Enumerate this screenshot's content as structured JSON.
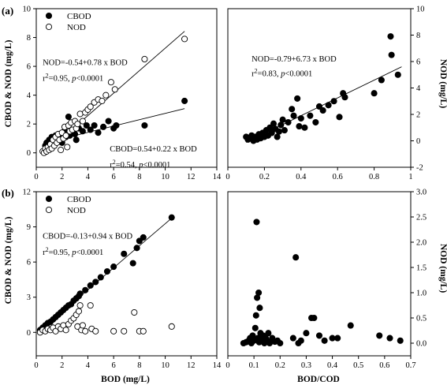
{
  "figure": {
    "panel_a": "(a)",
    "panel_b": "(b)",
    "xlabel_left": "BOD (mg/L)",
    "xlabel_right": "BOD/COD",
    "ylabel_left": "CBOD & NOD (mg/L)",
    "ylabel_right": "NOD (mg/L)"
  },
  "colors": {
    "marker": "#000000",
    "open_fill": "#ffffff",
    "axes": "#000000"
  },
  "chart_data": [
    {
      "id": "a-left",
      "type": "scatter",
      "xlim": [
        0,
        14
      ],
      "ylim": [
        -1,
        10
      ],
      "xticks": [
        0,
        2,
        4,
        6,
        8,
        10,
        12,
        14
      ],
      "yticks": [
        0,
        2,
        4,
        6,
        8,
        10
      ],
      "xlabel": "",
      "ylabel": "CBOD & NOD (mg/L)",
      "legend": [
        "CBOD",
        "NOD"
      ],
      "legend_position": "top-left",
      "annotations": [
        {
          "text": "NOD=-0.54+0.78 x BOD",
          "at": [
            0.5,
            6.1
          ]
        },
        {
          "text": "r²=0.95, p<0.0001",
          "at": [
            0.5,
            5.0
          ]
        },
        {
          "text": "CBOD=0.54+0.22 x BOD",
          "at": [
            5.7,
            0.1
          ]
        },
        {
          "text": "r²=0.54, p<0.0001",
          "at": [
            5.7,
            -1.0
          ]
        }
      ],
      "fit_lines": [
        {
          "series": "NOD",
          "intercept": -0.54,
          "slope": 0.78,
          "x_range": [
            1.5,
            11.5
          ]
        },
        {
          "series": "CBOD",
          "intercept": 0.54,
          "slope": 0.22,
          "x_range": [
            0.6,
            11.5
          ]
        }
      ],
      "series": [
        {
          "name": "CBOD",
          "marker": "filled",
          "points": [
            [
              0.7,
              0.5
            ],
            [
              0.8,
              0.7
            ],
            [
              0.9,
              0.4
            ],
            [
              1.0,
              0.9
            ],
            [
              1.1,
              0.6
            ],
            [
              1.2,
              1.1
            ],
            [
              1.3,
              0.8
            ],
            [
              1.4,
              0.5
            ],
            [
              1.5,
              1.2
            ],
            [
              1.6,
              0.9
            ],
            [
              1.8,
              1.3
            ],
            [
              1.9,
              1.0
            ],
            [
              2.0,
              0.7
            ],
            [
              2.2,
              1.5
            ],
            [
              2.3,
              1.1
            ],
            [
              2.5,
              2.5
            ],
            [
              2.6,
              1.2
            ],
            [
              2.8,
              1.6
            ],
            [
              3.0,
              1.3
            ],
            [
              3.1,
              0.9
            ],
            [
              3.3,
              1.7
            ],
            [
              3.6,
              1.5
            ],
            [
              3.9,
              1.9
            ],
            [
              4.2,
              1.6
            ],
            [
              4.5,
              1.9
            ],
            [
              4.8,
              1.4
            ],
            [
              5.2,
              1.8
            ],
            [
              5.6,
              2.2
            ],
            [
              6.0,
              1.7
            ],
            [
              6.2,
              1.9
            ],
            [
              8.4,
              1.9
            ],
            [
              11.5,
              3.6
            ]
          ]
        },
        {
          "name": "NOD",
          "marker": "open",
          "points": [
            [
              0.5,
              0.1
            ],
            [
              0.6,
              0.0
            ],
            [
              0.7,
              0.3
            ],
            [
              0.8,
              0.1
            ],
            [
              0.9,
              0.4
            ],
            [
              1.0,
              0.2
            ],
            [
              1.1,
              0.6
            ],
            [
              1.2,
              0.3
            ],
            [
              1.3,
              0.9
            ],
            [
              1.4,
              0.5
            ],
            [
              1.5,
              1.1
            ],
            [
              1.6,
              0.7
            ],
            [
              1.7,
              1.3
            ],
            [
              1.8,
              0.9
            ],
            [
              1.9,
              0.2
            ],
            [
              2.0,
              1.4
            ],
            [
              2.1,
              1.0
            ],
            [
              2.2,
              1.8
            ],
            [
              2.3,
              1.2
            ],
            [
              2.4,
              0.4
            ],
            [
              2.5,
              1.9
            ],
            [
              2.6,
              1.5
            ],
            [
              2.7,
              2.1
            ],
            [
              2.8,
              1.6
            ],
            [
              3.0,
              2.2
            ],
            [
              3.1,
              1.7
            ],
            [
              3.2,
              2.0
            ],
            [
              3.4,
              2.7
            ],
            [
              3.6,
              2.2
            ],
            [
              3.8,
              2.8
            ],
            [
              4.0,
              3.0
            ],
            [
              4.2,
              3.2
            ],
            [
              4.5,
              3.5
            ],
            [
              4.8,
              3.7
            ],
            [
              5.1,
              3.6
            ],
            [
              5.4,
              4.0
            ],
            [
              5.8,
              4.9
            ],
            [
              6.1,
              4.4
            ],
            [
              8.4,
              6.5
            ],
            [
              11.5,
              7.9
            ]
          ]
        }
      ]
    },
    {
      "id": "a-right",
      "type": "scatter",
      "xlim": [
        0,
        1.0
      ],
      "ylim": [
        -2,
        10
      ],
      "xticks": [
        0,
        0.2,
        0.4,
        0.6,
        0.8,
        1.0
      ],
      "yticks": [
        -2,
        0,
        2,
        4,
        6,
        8,
        10
      ],
      "xlabel": "",
      "ylabel": "NOD (mg/L)",
      "annotations": [
        {
          "text": "NOD=-0.79+6.73 x BOD",
          "at": [
            0.13,
            6.0
          ]
        },
        {
          "text": "r²=0.83, p<0.0001",
          "at": [
            0.13,
            4.9
          ]
        }
      ],
      "fit_lines": [
        {
          "series": "NOD",
          "intercept": -0.79,
          "slope": 6.73,
          "x_range": [
            0.1,
            0.95
          ]
        }
      ],
      "series": [
        {
          "name": "NOD",
          "marker": "filled",
          "points": [
            [
              0.1,
              0.3
            ],
            [
              0.11,
              0.1
            ],
            [
              0.12,
              0.2
            ],
            [
              0.13,
              0.4
            ],
            [
              0.14,
              0.0
            ],
            [
              0.15,
              0.3
            ],
            [
              0.16,
              0.1
            ],
            [
              0.17,
              0.5
            ],
            [
              0.18,
              0.2
            ],
            [
              0.19,
              0.6
            ],
            [
              0.2,
              0.3
            ],
            [
              0.21,
              0.8
            ],
            [
              0.22,
              0.4
            ],
            [
              0.23,
              1.0
            ],
            [
              0.24,
              0.6
            ],
            [
              0.25,
              1.3
            ],
            [
              0.26,
              0.9
            ],
            [
              0.27,
              0.3
            ],
            [
              0.28,
              0.7
            ],
            [
              0.29,
              1.2
            ],
            [
              0.3,
              1.6
            ],
            [
              0.31,
              0.8
            ],
            [
              0.33,
              1.4
            ],
            [
              0.35,
              2.4
            ],
            [
              0.36,
              1.9
            ],
            [
              0.38,
              3.2
            ],
            [
              0.39,
              1.1
            ],
            [
              0.4,
              1.7
            ],
            [
              0.42,
              1.0
            ],
            [
              0.45,
              1.9
            ],
            [
              0.48,
              1.4
            ],
            [
              0.5,
              2.6
            ],
            [
              0.52,
              2.3
            ],
            [
              0.55,
              2.7
            ],
            [
              0.58,
              3.0
            ],
            [
              0.61,
              1.8
            ],
            [
              0.63,
              3.6
            ],
            [
              0.64,
              3.3
            ],
            [
              0.8,
              3.6
            ],
            [
              0.84,
              4.6
            ],
            [
              0.89,
              7.9
            ],
            [
              0.895,
              6.5
            ],
            [
              0.93,
              5.0
            ]
          ]
        }
      ]
    },
    {
      "id": "b-left",
      "type": "scatter",
      "xlim": [
        0,
        14
      ],
      "ylim": [
        -2,
        12
      ],
      "xticks": [
        0,
        2,
        4,
        6,
        8,
        10,
        12,
        14
      ],
      "yticks": [
        0,
        3,
        6,
        9,
        12
      ],
      "xlabel": "BOD (mg/L)",
      "ylabel": "CBOD & NOD (mg/L)",
      "legend": [
        "CBOD",
        "NOD"
      ],
      "legend_position": "top-left",
      "annotations": [
        {
          "text": "CBOD=-0.13+0.94 x BOD",
          "at": [
            0.5,
            8.0
          ]
        },
        {
          "text": "r²=0.95, p<0.0001",
          "at": [
            0.5,
            6.6
          ]
        }
      ],
      "fit_lines": [
        {
          "series": "CBOD",
          "intercept": -0.13,
          "slope": 0.94,
          "x_range": [
            0.4,
            10.5
          ]
        }
      ],
      "series": [
        {
          "name": "CBOD",
          "marker": "filled",
          "points": [
            [
              0.3,
              0.2
            ],
            [
              0.5,
              0.4
            ],
            [
              0.7,
              0.6
            ],
            [
              0.9,
              0.8
            ],
            [
              1.1,
              0.9
            ],
            [
              1.3,
              1.1
            ],
            [
              1.5,
              1.3
            ],
            [
              1.7,
              1.5
            ],
            [
              1.9,
              1.7
            ],
            [
              2.1,
              1.9
            ],
            [
              2.3,
              2.1
            ],
            [
              2.5,
              2.3
            ],
            [
              2.7,
              2.4
            ],
            [
              2.9,
              2.7
            ],
            [
              3.1,
              2.9
            ],
            [
              3.3,
              3.1
            ],
            [
              3.4,
              3.3
            ],
            [
              3.8,
              3.6
            ],
            [
              4.2,
              4.0
            ],
            [
              4.6,
              4.3
            ],
            [
              5.0,
              4.7
            ],
            [
              5.5,
              5.2
            ],
            [
              6.0,
              5.6
            ],
            [
              6.8,
              6.7
            ],
            [
              7.5,
              5.9
            ],
            [
              7.8,
              7.2
            ],
            [
              8.0,
              7.8
            ],
            [
              8.3,
              8.1
            ],
            [
              10.5,
              9.8
            ]
          ]
        },
        {
          "name": "NOD",
          "marker": "open",
          "points": [
            [
              0.3,
              0.0
            ],
            [
              0.5,
              0.2
            ],
            [
              0.7,
              0.1
            ],
            [
              0.9,
              0.3
            ],
            [
              1.1,
              0.2
            ],
            [
              1.3,
              0.4
            ],
            [
              1.5,
              0.1
            ],
            [
              1.7,
              0.5
            ],
            [
              1.9,
              0.3
            ],
            [
              2.1,
              0.6
            ],
            [
              2.3,
              0.2
            ],
            [
              2.5,
              0.7
            ],
            [
              2.7,
              1.0
            ],
            [
              2.9,
              1.2
            ],
            [
              3.1,
              1.5
            ],
            [
              3.2,
              0.5
            ],
            [
              3.3,
              1.8
            ],
            [
              3.4,
              2.3
            ],
            [
              3.5,
              0.2
            ],
            [
              3.6,
              0.6
            ],
            [
              3.8,
              0.1
            ],
            [
              4.2,
              2.3
            ],
            [
              4.3,
              0.3
            ],
            [
              4.6,
              0.1
            ],
            [
              6.0,
              0.1
            ],
            [
              6.8,
              0.1
            ],
            [
              7.6,
              1.7
            ],
            [
              8.0,
              0.1
            ],
            [
              8.3,
              0.1
            ],
            [
              10.5,
              0.5
            ]
          ]
        }
      ]
    },
    {
      "id": "b-right",
      "type": "scatter",
      "xlim": [
        0,
        0.7
      ],
      "ylim": [
        -0.25,
        3.0
      ],
      "xticks": [
        0,
        0.1,
        0.2,
        0.3,
        0.4,
        0.5,
        0.6,
        0.7
      ],
      "yticks": [
        0,
        0.5,
        1.0,
        1.5,
        2.0,
        2.5,
        3.0
      ],
      "xlabel": "BOD/COD",
      "ylabel": "NOD (mg/L)",
      "series": [
        {
          "name": "NOD",
          "marker": "filled",
          "points": [
            [
              0.06,
              0.0
            ],
            [
              0.07,
              0.02
            ],
            [
              0.08,
              0.05
            ],
            [
              0.085,
              0.1
            ],
            [
              0.09,
              0.0
            ],
            [
              0.095,
              0.15
            ],
            [
              0.1,
              0.05
            ],
            [
              0.105,
              0.3
            ],
            [
              0.108,
              0.55
            ],
            [
              0.11,
              2.4
            ],
            [
              0.112,
              0.9
            ],
            [
              0.115,
              0.1
            ],
            [
              0.118,
              1.0
            ],
            [
              0.12,
              0.02
            ],
            [
              0.122,
              0.7
            ],
            [
              0.125,
              0.2
            ],
            [
              0.13,
              0.05
            ],
            [
              0.135,
              0.15
            ],
            [
              0.14,
              0.0
            ],
            [
              0.145,
              0.1
            ],
            [
              0.15,
              0.05
            ],
            [
              0.155,
              0.2
            ],
            [
              0.16,
              0.0
            ],
            [
              0.17,
              0.1
            ],
            [
              0.18,
              0.03
            ],
            [
              0.19,
              0.05
            ],
            [
              0.2,
              0.0
            ],
            [
              0.25,
              0.1
            ],
            [
              0.26,
              1.7
            ],
            [
              0.27,
              0.0
            ],
            [
              0.28,
              0.05
            ],
            [
              0.3,
              0.2
            ],
            [
              0.32,
              0.5
            ],
            [
              0.33,
              0.5
            ],
            [
              0.35,
              0.15
            ],
            [
              0.37,
              0.05
            ],
            [
              0.4,
              0.1
            ],
            [
              0.42,
              0.1
            ],
            [
              0.47,
              0.35
            ],
            [
              0.58,
              0.15
            ],
            [
              0.62,
              0.1
            ],
            [
              0.66,
              0.05
            ]
          ]
        }
      ]
    }
  ]
}
